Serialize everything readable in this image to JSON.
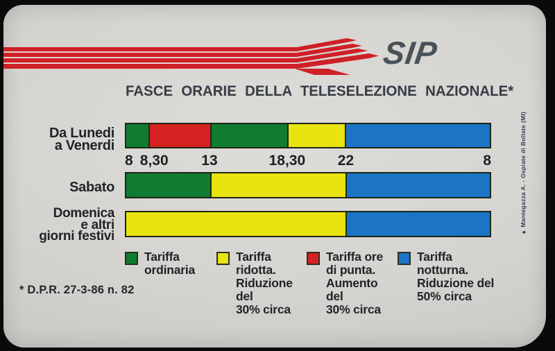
{
  "brand": "SIP",
  "title": "FASCE  ORARIE  DELLA  TELESELEZIONE  NAZIONALE*",
  "footnote": "* D.P.R. 27-3-86 n. 82",
  "printer_credit": "▲ Mantegazza A. - Ospiate di Bollate (MI)",
  "colors": {
    "green": "#0f7c31",
    "yellow": "#e9e30f",
    "red": "#d52121",
    "blue": "#1b74c5",
    "stripe_red": "#cf2027",
    "sip_text": "#49525a"
  },
  "chart_data": {
    "type": "bar",
    "subtype": "horizontal-stacked-timeline",
    "title": "FASCE ORARIE DELLA TELESELEZIONE NAZIONALE*",
    "grid": false,
    "legend_position": "bottom",
    "x_ticks": [
      {
        "label": "8",
        "pos_pct": 0,
        "align": "start"
      },
      {
        "label": "8,30",
        "pos_pct": 8,
        "align": "center"
      },
      {
        "label": "13",
        "pos_pct": 23.1,
        "align": "center"
      },
      {
        "label": "18,30",
        "pos_pct": 44.3,
        "align": "center"
      },
      {
        "label": "22",
        "pos_pct": 60.3,
        "align": "center"
      },
      {
        "label": "8",
        "pos_pct": 100,
        "align": "end"
      }
    ],
    "rows": [
      {
        "label_lines": [
          "Da Lunedi",
          "a Venerdi"
        ],
        "segments": [
          {
            "tariff": "Tariffa ordinaria",
            "color": "green",
            "from": "8",
            "to": "8,30",
            "width_pct": 6.1
          },
          {
            "tariff": "Tariffa ore di punta",
            "color": "red",
            "from": "8,30",
            "to": "13",
            "width_pct": 16.9
          },
          {
            "tariff": "Tariffa ordinaria",
            "color": "green",
            "from": "13",
            "to": "18,30",
            "width_pct": 21.2
          },
          {
            "tariff": "Tariffa ridotta",
            "color": "yellow",
            "from": "18,30",
            "to": "22",
            "width_pct": 15.9
          },
          {
            "tariff": "Tariffa notturna",
            "color": "blue",
            "from": "22",
            "to": "8",
            "width_pct": 39.9
          }
        ]
      },
      {
        "label_lines": [
          "Sabato"
        ],
        "segments": [
          {
            "tariff": "Tariffa ordinaria",
            "color": "green",
            "from": "8",
            "to": "13",
            "width_pct": 23.1
          },
          {
            "tariff": "Tariffa ridotta",
            "color": "yellow",
            "from": "13",
            "to": "22",
            "width_pct": 37.2
          },
          {
            "tariff": "Tariffa notturna",
            "color": "blue",
            "from": "22",
            "to": "8",
            "width_pct": 39.7
          }
        ]
      },
      {
        "label_lines": [
          "Domenica",
          "e altri",
          "giorni festivi"
        ],
        "segments": [
          {
            "tariff": "Tariffa ridotta",
            "color": "yellow",
            "from": "8",
            "to": "22",
            "width_pct": 60.3
          },
          {
            "tariff": "Tariffa notturna",
            "color": "blue",
            "from": "22",
            "to": "8",
            "width_pct": 39.7
          }
        ]
      }
    ],
    "legend": [
      {
        "color": "green",
        "lines": [
          "Tariffa",
          "ordinaria"
        ]
      },
      {
        "color": "yellow",
        "lines": [
          "Tariffa",
          "ridotta.",
          "Riduzione del",
          "30% circa"
        ]
      },
      {
        "color": "red",
        "lines": [
          "Tariffa ore",
          "di punta.",
          "Aumento del",
          "30% circa"
        ]
      },
      {
        "color": "blue",
        "lines": [
          "Tariffa",
          "notturna.",
          "Riduzione del",
          "50% circa"
        ]
      }
    ]
  }
}
